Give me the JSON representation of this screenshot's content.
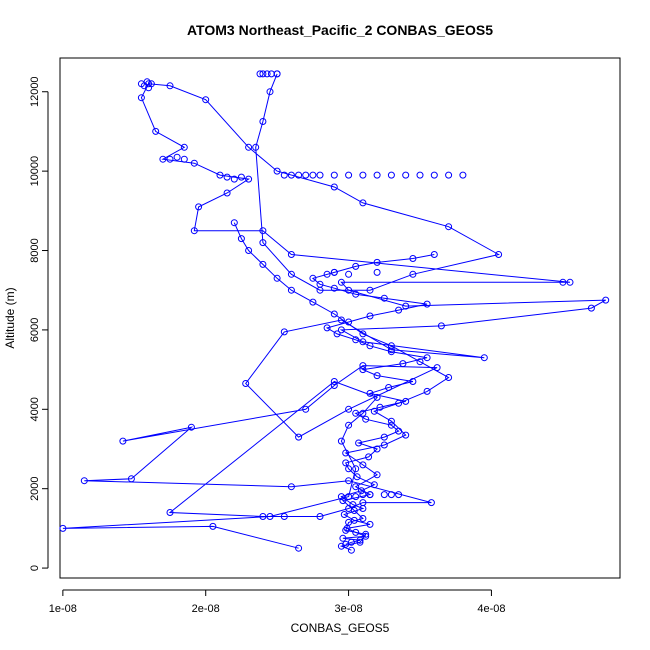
{
  "chart_data": {
    "type": "scatter",
    "title": "ATOM3 Northeast_Pacific_2 CONBAS_GEOS5",
    "xlabel": "CONBAS_GEOS5",
    "ylabel": "Altitude (m)",
    "xlim": [
      9.8e-09,
      4.9e-08
    ],
    "ylim": [
      -250,
      12850
    ],
    "xticks": [
      1e-08,
      2e-08,
      3e-08,
      4e-08
    ],
    "xtick_labels": [
      "1e-08",
      "2e-08",
      "3e-08",
      "4e-08"
    ],
    "yticks": [
      0,
      2000,
      4000,
      6000,
      8000,
      10000,
      12000
    ],
    "ytick_labels": [
      "0",
      "2000",
      "4000",
      "6000",
      "8000",
      "10000",
      "12000"
    ],
    "grid": false,
    "legend": "none",
    "colors": {
      "series": "#0000ff",
      "axis": "#000000",
      "background": "#ffffff"
    },
    "series": [
      {
        "style": "line+markers",
        "x": [
          2.65e-08,
          2.05e-08,
          1e-08,
          2.45e-08,
          3e-08,
          3.05e-08,
          2.95e-08,
          3e-08,
          3.1e-08,
          3.2e-08,
          2.9e-08,
          1.75e-08,
          2.4e-08,
          2.55e-08,
          2.8e-08,
          3e-08,
          3.1e-08,
          3.58e-08,
          3e-08,
          2.6e-08,
          1.15e-08,
          1.48e-08,
          1.9e-08,
          1.42e-08,
          2.7e-08,
          2.9e-08,
          3.1e-08,
          3.62e-08,
          3e-08,
          2.65e-08,
          2.28e-08,
          2.55e-08,
          2.95e-08,
          3.3e-08,
          3.95e-08,
          3.1e-08,
          2.95e-08,
          3.65e-08,
          4.7e-08,
          4.8e-08,
          3.4e-08,
          3e-08,
          2.95e-08,
          4.5e-08,
          4.55e-08,
          2.6e-08,
          2.4e-08,
          1.92e-08,
          1.95e-08,
          2.15e-08,
          2.3e-08,
          2.1e-08,
          1.92e-08,
          1.7e-08,
          1.85e-08,
          1.65e-08,
          1.55e-08,
          1.6e-08,
          1.75e-08,
          2e-08,
          2.3e-08,
          2.5e-08,
          2.9e-08,
          3.1e-08,
          3.7e-08,
          4.05e-08,
          3.45e-08,
          3.15e-08,
          2.8e-08,
          2.6e-08,
          2.4e-08,
          2.35e-08,
          2.4e-08,
          2.45e-08,
          2.5e-08
        ],
        "y": [
          500,
          1050,
          1000,
          1300,
          1800,
          2500,
          3200,
          3600,
          3900,
          4300,
          4700,
          1400,
          1300,
          1300,
          1300,
          1500,
          1650,
          1650,
          2200,
          2050,
          2200,
          2250,
          3550,
          3200,
          4000,
          4600,
          5100,
          5050,
          4000,
          3300,
          4650,
          5950,
          6250,
          5500,
          5300,
          5700,
          6000,
          6100,
          6550,
          6750,
          6600,
          7000,
          7200,
          7200,
          7200,
          7900,
          8500,
          8500,
          9100,
          9450,
          9800,
          9900,
          10200,
          10300,
          10600,
          11000,
          11850,
          12200,
          12150,
          11800,
          10600,
          10000,
          9600,
          9200,
          8600,
          7900,
          7400,
          7000,
          7000,
          7400,
          8200,
          10600,
          11250,
          12000,
          12450
        ]
      },
      {
        "style": "line+markers",
        "x": [
          2.98e-08,
          3.02e-08,
          3.08e-08,
          2.96e-08,
          3.12e-08,
          3.05e-08,
          2.99e-08,
          3.15e-08,
          3.04e-08,
          2.97e-08,
          3.1e-08,
          3.03e-08,
          2.95e-08,
          3.09e-08,
          3.18e-08,
          3.06e-08,
          3e-08,
          2.98e-08,
          3.14e-08,
          3.2e-08,
          3.07e-08,
          3.25e-08,
          3.35e-08,
          3.3e-08,
          3.12e-08,
          3.05e-08,
          3.22e-08,
          3.4e-08,
          3.15e-08,
          3.28e-08,
          3.45e-08,
          3.2e-08,
          3.1e-08,
          3.38e-08,
          3.55e-08,
          3.3e-08,
          3.15e-08,
          3.05e-08,
          2.92e-08,
          2.85e-08,
          3e-08,
          3.15e-08,
          3.35e-08,
          3.55e-08,
          3.25e-08,
          3.05e-08,
          2.9e-08,
          2.8e-08,
          2.75e-08,
          2.9e-08,
          3.05e-08,
          3.2e-08,
          3.45e-08,
          3.6e-08
        ],
        "y": [
          600,
          650,
          700,
          750,
          800,
          900,
          1000,
          1100,
          1200,
          1350,
          1500,
          1600,
          1800,
          1950,
          2100,
          2300,
          2500,
          2650,
          2800,
          3000,
          3150,
          3300,
          3450,
          3600,
          3750,
          3900,
          4050,
          4200,
          4400,
          4550,
          4700,
          4850,
          5000,
          5150,
          5300,
          5450,
          5600,
          5750,
          5900,
          6050,
          6200,
          6350,
          6500,
          6650,
          6800,
          6900,
          7050,
          7150,
          7300,
          7450,
          7600,
          7700,
          7800,
          7900
        ]
      },
      {
        "style": "line+markers",
        "x": [
          3.02e-08,
          2.95e-08,
          3.08e-08,
          3.12e-08,
          2.98e-08,
          3e-08,
          3.1e-08,
          3.04e-08,
          2.96e-08,
          3.15e-08,
          3.05e-08,
          3.2e-08,
          3.1e-08,
          2.98e-08,
          3.25e-08,
          3.4e-08,
          3.3e-08,
          3.18e-08,
          3.35e-08,
          3.55e-08,
          3.7e-08,
          3.5e-08,
          3.3e-08,
          3.1e-08,
          2.9e-08,
          2.75e-08,
          2.6e-08,
          2.5e-08,
          2.4e-08,
          2.3e-08,
          2.25e-08,
          2.2e-08
        ],
        "y": [
          450,
          550,
          650,
          850,
          950,
          1150,
          1250,
          1450,
          1700,
          1850,
          2050,
          2350,
          2600,
          2900,
          3100,
          3350,
          3700,
          3950,
          4150,
          4450,
          4800,
          5200,
          5600,
          5900,
          6400,
          6700,
          7000,
          7300,
          7650,
          8000,
          8300,
          8700
        ]
      },
      {
        "style": "markers",
        "x": [
          2.55e-08,
          2.6e-08,
          2.65e-08,
          2.7e-08,
          2.75e-08,
          2.8e-08,
          2.9e-08,
          3e-08,
          3.1e-08,
          3.2e-08,
          3.3e-08,
          3.4e-08,
          3.5e-08,
          3.6e-08,
          3.7e-08,
          3.8e-08
        ],
        "y": [
          9900,
          9900,
          9900,
          9900,
          9900,
          9900,
          9900,
          9900,
          9900,
          9900,
          9900,
          9900,
          9900,
          9900,
          9900,
          9900
        ]
      },
      {
        "style": "markers",
        "x": [
          1.55e-08,
          1.57e-08,
          1.59e-08,
          1.6e-08,
          1.62e-08
        ],
        "y": [
          12200,
          12150,
          12250,
          12100,
          12200
        ]
      },
      {
        "style": "markers",
        "x": [
          2.38e-08,
          2.4e-08,
          2.43e-08,
          2.46e-08,
          2.5e-08
        ],
        "y": [
          12450,
          12450,
          12450,
          12450,
          12450
        ]
      },
      {
        "style": "markers",
        "x": [
          1.75e-08,
          1.8e-08,
          1.85e-08,
          2.15e-08,
          2.2e-08,
          2.25e-08,
          2.85e-08,
          2.9e-08,
          3e-08,
          3.2e-08,
          3.25e-08,
          3.05e-08,
          3.1e-08,
          3.15e-08,
          3.3e-08,
          3.35e-08
        ],
        "y": [
          10300,
          10350,
          10300,
          9850,
          9800,
          9850,
          7400,
          7450,
          7400,
          7450,
          1850,
          1800,
          1850,
          1850,
          1850,
          1850
        ]
      }
    ]
  }
}
